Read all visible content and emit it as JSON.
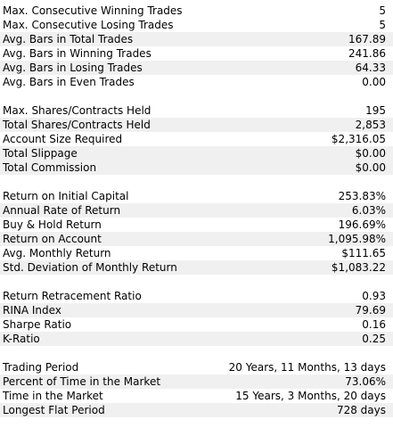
{
  "colors": {
    "background": "#ffffff",
    "shade": "#f0f0f0",
    "text": "#000000"
  },
  "sections": [
    {
      "rows": [
        {
          "label": "Max. Consecutive Winning Trades",
          "value": "5",
          "shade": false
        },
        {
          "label": "Max. Consecutive Losing Trades",
          "value": "5",
          "shade": false
        },
        {
          "label": "Avg. Bars in Total Trades",
          "value": "167.89",
          "shade": true
        },
        {
          "label": "Avg. Bars in Winning Trades",
          "value": "241.86",
          "shade": false
        },
        {
          "label": "Avg. Bars in Losing Trades",
          "value": "64.33",
          "shade": true
        },
        {
          "label": "Avg. Bars in Even Trades",
          "value": "0.00",
          "shade": false
        }
      ]
    },
    {
      "rows": [
        {
          "label": "Max. Shares/Contracts Held",
          "value": "195",
          "shade": false
        },
        {
          "label": "Total Shares/Contracts Held",
          "value": "2,853",
          "shade": true
        },
        {
          "label": "Account Size Required",
          "value": "$2,316.05",
          "shade": false
        },
        {
          "label": "Total Slippage",
          "value": "$0.00",
          "shade": true
        },
        {
          "label": "Total Commission",
          "value": "$0.00",
          "shade": true
        }
      ]
    },
    {
      "rows": [
        {
          "label": "Return on Initial Capital",
          "value": "253.83%",
          "shade": false
        },
        {
          "label": "Annual Rate of Return",
          "value": "6.03%",
          "shade": true
        },
        {
          "label": "Buy & Hold Return",
          "value": "196.69%",
          "shade": false
        },
        {
          "label": "Return on Account",
          "value": "1,095.98%",
          "shade": true
        },
        {
          "label": "Avg. Monthly Return",
          "value": "$111.65",
          "shade": false
        },
        {
          "label": "Std. Deviation of Monthly Return",
          "value": "$1,083.22",
          "shade": true
        }
      ]
    },
    {
      "rows": [
        {
          "label": "Return Retracement Ratio",
          "value": "0.93",
          "shade": false
        },
        {
          "label": "RINA Index",
          "value": "79.69",
          "shade": true
        },
        {
          "label": "Sharpe Ratio",
          "value": "0.16",
          "shade": false
        },
        {
          "label": "K-Ratio",
          "value": "0.25",
          "shade": true
        }
      ]
    },
    {
      "rows": [
        {
          "label": "Trading Period",
          "value": "20 Years, 11 Months, 13 days",
          "shade": false
        },
        {
          "label": "Percent of Time in the Market",
          "value": "73.06%",
          "shade": true
        },
        {
          "label": "Time in the Market",
          "value": "15 Years, 3 Months, 20 days",
          "shade": false
        },
        {
          "label": "Longest Flat Period",
          "value": "728 days",
          "shade": true
        }
      ]
    }
  ]
}
